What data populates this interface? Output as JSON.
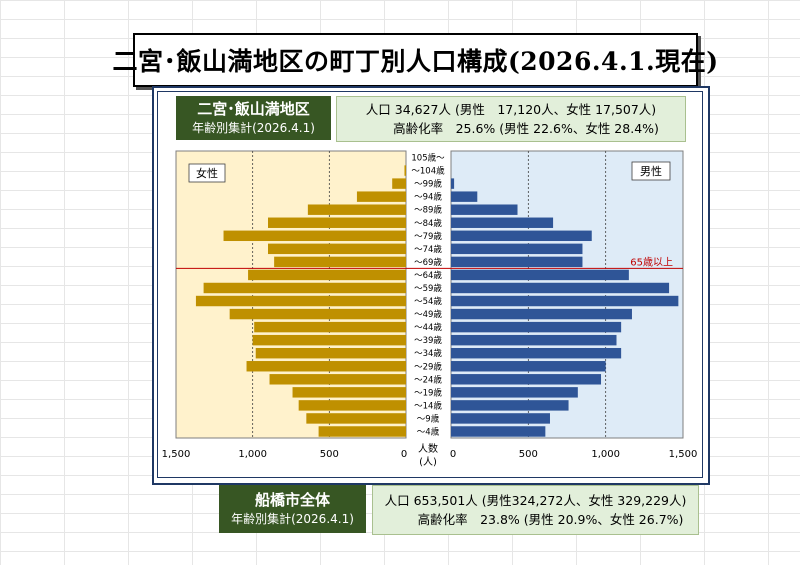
{
  "title": "二宮･飯山満地区の町丁別人口構成(2026.4.1.現在)",
  "district": {
    "name": "二宮･飯山満地区",
    "subtitle": "年齢別集計(2026.4.1)",
    "population_line": "人口 34,627人 (男性　17,120人、女性 17,507人)",
    "aging_line": "高齢化率　25.6% (男性 22.6%、女性 28.4%)"
  },
  "city": {
    "name": "船橋市全体",
    "subtitle": "年齢別集計(2026.4.1)",
    "population_line": "人口 653,501人 (男性324,272人、女性 329,229人)",
    "aging_line": "高齢化率　23.8% (男性 20.9%、女性 26.7%)"
  },
  "colors": {
    "female_bar": "#bf9000",
    "male_bar": "#2f5597",
    "female_bg": "#fff2cc",
    "male_bg": "#deebf7",
    "line_65": "#c00000",
    "label_green": "#375623",
    "info_bg": "#e2efda"
  },
  "chart_data": {
    "type": "bar",
    "subtype": "population-pyramid",
    "orientation": "horizontal",
    "female_label": "女性",
    "male_label": "男性",
    "unit_label_1": "人数",
    "unit_label_2": "(人)",
    "marker_label": "65歳以上",
    "age_labels": [
      "105歳～",
      "～104歳",
      "～99歳",
      "～94歳",
      "～89歳",
      "～84歳",
      "～79歳",
      "～74歳",
      "～69歳",
      "～64歳",
      "～59歳",
      "～54歳",
      "～49歳",
      "～44歳",
      "～39歳",
      "～34歳",
      "～29歳",
      "～24歳",
      "～19歳",
      "～14歳",
      "～9歳",
      "～4歳"
    ],
    "female_values": [
      0,
      10,
      90,
      320,
      640,
      900,
      1190,
      900,
      860,
      1030,
      1320,
      1370,
      1150,
      990,
      1000,
      980,
      1040,
      890,
      740,
      700,
      650,
      570
    ],
    "male_values": [
      0,
      0,
      20,
      170,
      430,
      660,
      910,
      850,
      850,
      1150,
      1410,
      1470,
      1170,
      1100,
      1070,
      1100,
      1000,
      970,
      820,
      760,
      640,
      610
    ],
    "x_ticks": [
      "1,500",
      "1,000",
      "500",
      "0",
      "0",
      "500",
      "1,000",
      "1,500"
    ],
    "xlim": [
      0,
      1500
    ],
    "marker_after_age": "～69歳",
    "grid": "vertical-dashed"
  }
}
